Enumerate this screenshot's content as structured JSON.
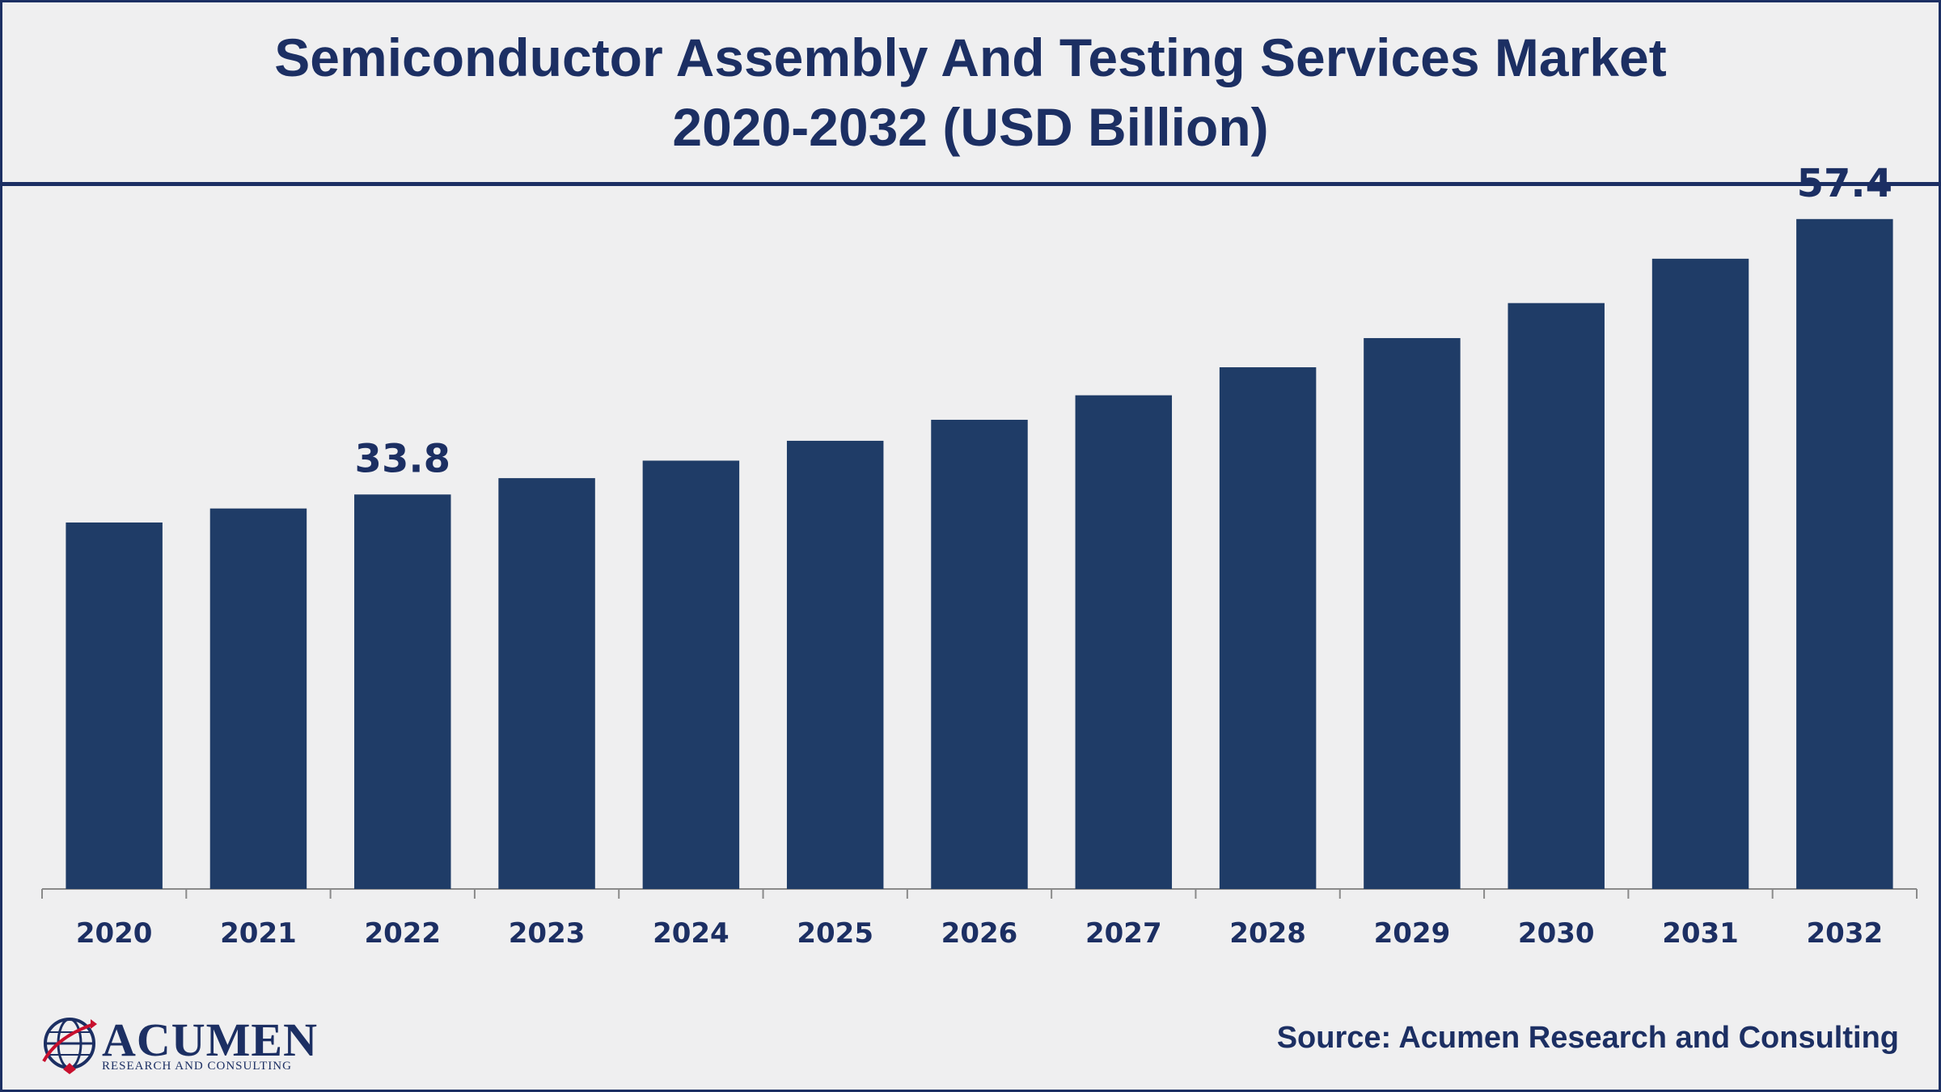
{
  "header": {
    "title_line1": "Semiconductor Assembly And Testing Services Market",
    "title_line2": "2020-2032 (USD Billion)"
  },
  "source": "Source: Acumen Research and Consulting",
  "logo": {
    "name": "ACUMEN",
    "tagline": "RESEARCH AND CONSULTING"
  },
  "colors": {
    "bar": "#1f3c67",
    "text": "#1c2f63",
    "axis": "#8a8a8a",
    "background": "#efeff0"
  },
  "chart_data": {
    "type": "bar",
    "title": "Semiconductor Assembly And Testing Services Market 2020-2032 (USD Billion)",
    "categories": [
      "2020",
      "2021",
      "2022",
      "2023",
      "2024",
      "2025",
      "2026",
      "2027",
      "2028",
      "2029",
      "2030",
      "2031",
      "2032"
    ],
    "values": [
      31.4,
      32.6,
      33.8,
      35.2,
      36.7,
      38.4,
      40.2,
      42.3,
      44.7,
      47.2,
      50.2,
      54.0,
      57.4
    ],
    "data_labels": [
      {
        "category": "2022",
        "value": "33.8"
      },
      {
        "category": "2032",
        "value": "57.4"
      }
    ],
    "ylim": [
      0,
      63
    ],
    "grid": false,
    "legend": "none"
  }
}
